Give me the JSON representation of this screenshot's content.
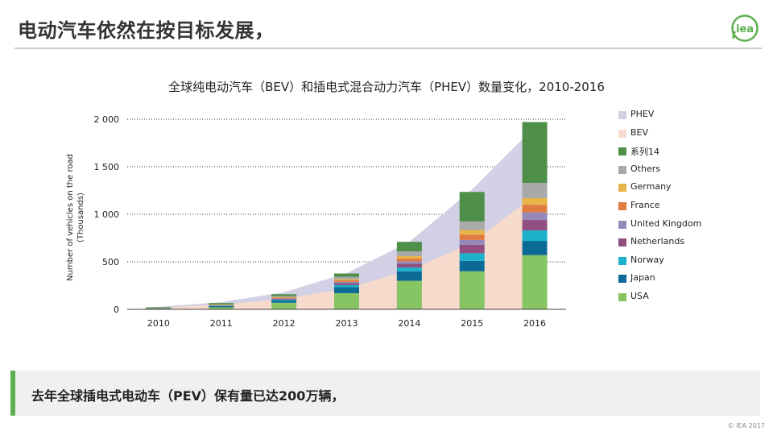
{
  "slide": {
    "title": "电动汽车依然在按目标发展，",
    "callout": "去年全球插电式电动车（PEV）保有量已达200万辆，",
    "copyright": "© IEA 2017",
    "logo_text": "iea"
  },
  "colors": {
    "accent_green": "#5db04f",
    "rule": "#c9c9c9"
  },
  "chart_data": {
    "type": "bar",
    "title": "全球纯电动汽车（BEV）和插电式混合动力汽车（PHEV）数量变化，2010-2016",
    "ylabel": "Number of vehicles on the road (Thousands)",
    "ylabel_lines": [
      "Number of vehicles on the road",
      "(Thousands)"
    ],
    "xlabel": "",
    "ylim": [
      0,
      2000
    ],
    "yticks": [
      0,
      500,
      1000,
      1500,
      2000
    ],
    "ytick_labels": [
      "0",
      "500",
      "1 000",
      "1 500",
      "2 000"
    ],
    "grid": "horizontal dotted",
    "legend_position": "right",
    "categories": [
      "2010",
      "2011",
      "2012",
      "2013",
      "2014",
      "2015",
      "2016"
    ],
    "series": [
      {
        "name": "USA",
        "color": "#86c464",
        "values": [
          4,
          22,
          70,
          170,
          300,
          400,
          570
        ]
      },
      {
        "name": "Japan",
        "color": "#0c6b96",
        "values": [
          3,
          12,
          25,
          65,
          100,
          110,
          150
        ]
      },
      {
        "name": "Norway",
        "color": "#1cb2cc",
        "values": [
          1,
          3,
          8,
          20,
          40,
          80,
          110
        ]
      },
      {
        "name": "Netherlands",
        "color": "#8f4f7f",
        "values": [
          0,
          2,
          7,
          20,
          40,
          90,
          110
        ]
      },
      {
        "name": "United Kingdom",
        "color": "#9489b8",
        "values": [
          1,
          2,
          5,
          15,
          25,
          50,
          80
        ]
      },
      {
        "name": "France",
        "color": "#e07c40",
        "values": [
          1,
          3,
          8,
          15,
          30,
          55,
          80
        ]
      },
      {
        "name": "Germany",
        "color": "#e8b448",
        "values": [
          1,
          3,
          6,
          12,
          25,
          50,
          70
        ]
      },
      {
        "name": "Others",
        "color": "#a9a9a9",
        "values": [
          1,
          4,
          10,
          25,
          50,
          90,
          160
        ]
      },
      {
        "name": "系列14",
        "color": "#4e8f4a",
        "values": [
          10,
          15,
          20,
          35,
          100,
          310,
          640
        ]
      }
    ],
    "area_series": [
      {
        "name": "BEV",
        "color": "#f6dacb",
        "values": [
          10,
          50,
          110,
          220,
          410,
          700,
          1200
        ]
      },
      {
        "name": "PHEV",
        "color": "#d2d0e4",
        "values": [
          15,
          75,
          180,
          380,
          710,
          1260,
          1920
        ]
      }
    ],
    "legend": [
      "PHEV",
      "BEV",
      "系列14",
      "Others",
      "Germany",
      "France",
      "United Kingdom",
      "Netherlands",
      "Norway",
      "Japan",
      "USA"
    ]
  }
}
